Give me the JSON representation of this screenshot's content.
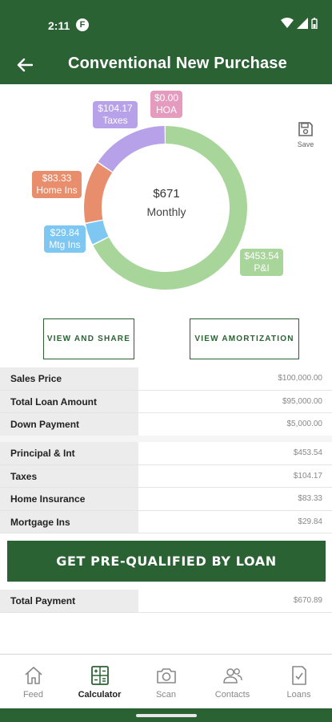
{
  "status": {
    "time": "2:11",
    "app_badge": "F"
  },
  "header": {
    "title": "Conventional New Purchase"
  },
  "chart_data": {
    "type": "pie",
    "variant": "donut",
    "center_value": "$671",
    "center_label": "Monthly",
    "slices": [
      {
        "label": "P&I",
        "value_text": "$453.54",
        "value": 453.54,
        "color": "#a8d59a"
      },
      {
        "label": "Mtg Ins",
        "value_text": "$29.84",
        "value": 29.84,
        "color": "#7ec7f2"
      },
      {
        "label": "Home Ins",
        "value_text": "$83.33",
        "value": 83.33,
        "color": "#e88e6d"
      },
      {
        "label": "Taxes",
        "value_text": "$104.17",
        "value": 104.17,
        "color": "#b7a2ea"
      },
      {
        "label": "HOA",
        "value_text": "$0.00",
        "value": 0.0,
        "color": "#e49bbd"
      }
    ]
  },
  "save": {
    "label": "Save"
  },
  "buttons": {
    "share": "VIEW AND SHARE",
    "amortization": "VIEW AMORTIZATION"
  },
  "loan_table": [
    {
      "label": "Sales Price",
      "value": "$100,000.00"
    },
    {
      "label": "Total Loan Amount",
      "value": "$95,000.00"
    },
    {
      "label": "Down Payment",
      "value": "$5,000.00"
    }
  ],
  "payment_table": [
    {
      "label": "Principal & Int",
      "value": "$453.54"
    },
    {
      "label": "Taxes",
      "value": "$104.17"
    },
    {
      "label": "Home Insurance",
      "value": "$83.33"
    },
    {
      "label": "Mortgage Ins",
      "value": "$29.84"
    }
  ],
  "cta": {
    "label": "GET PRE-QUALIFIED BY LOAN"
  },
  "total": {
    "label": "Total Payment",
    "value": "$670.89"
  },
  "nav": [
    {
      "label": "Feed",
      "icon": "house-icon"
    },
    {
      "label": "Calculator",
      "icon": "calculator-icon",
      "active": true
    },
    {
      "label": "Scan",
      "icon": "camera-icon"
    },
    {
      "label": "Contacts",
      "icon": "contacts-icon"
    },
    {
      "label": "Loans",
      "icon": "document-check-icon"
    }
  ],
  "colors": {
    "brand": "#2a6233"
  }
}
